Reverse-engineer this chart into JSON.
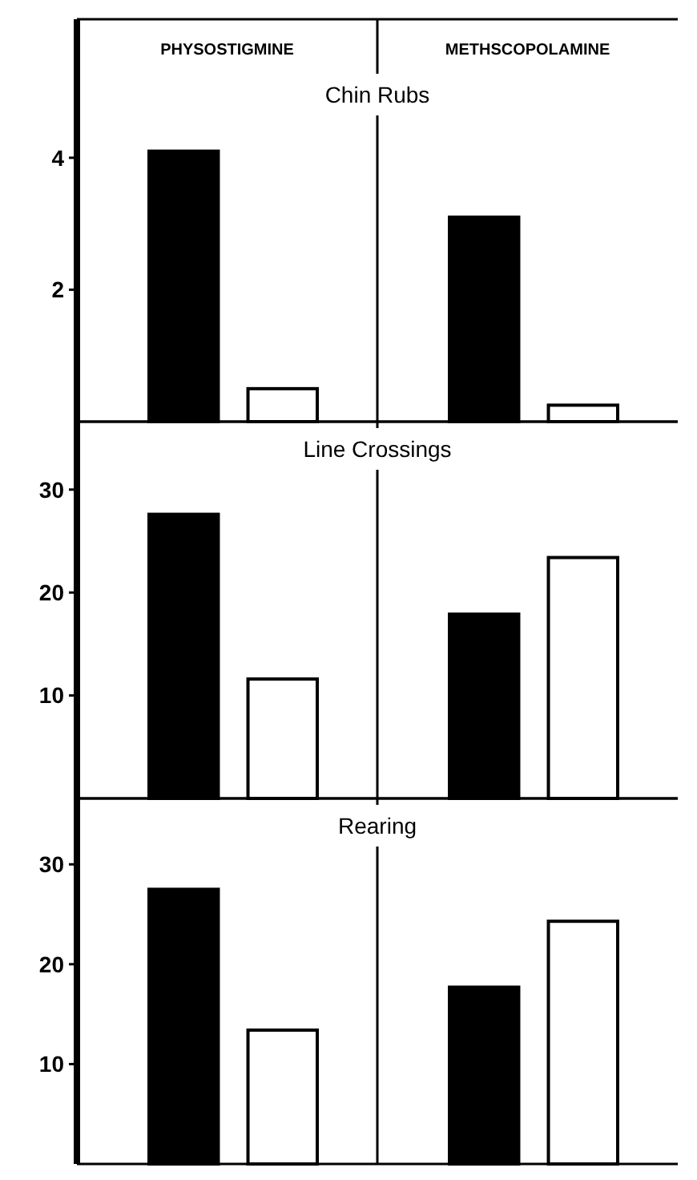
{
  "chart_data": [
    {
      "type": "bar",
      "title": "Chin Rubs",
      "categories": [
        "PHYSOSTIGMINE",
        "METHSCOPOLAMINE"
      ],
      "ylim": [
        0,
        6.1
      ],
      "yticks": [
        2,
        4
      ],
      "grid": false,
      "series": [
        {
          "color": "#000000",
          "values": [
            4.1,
            3.1
          ]
        },
        {
          "color": "#ffffff",
          "values": [
            0.5,
            0.25
          ]
        }
      ]
    },
    {
      "type": "bar",
      "title": "Line Crossings",
      "categories": [
        null,
        null
      ],
      "tick_labels": "y",
      "ylim": [
        0,
        36.6
      ],
      "yticks": [
        10,
        20,
        30
      ],
      "grid": false,
      "series": [
        {
          "color": "#000000",
          "values": [
            27.6,
            17.9
          ]
        },
        {
          "color": "#ffffff",
          "values": [
            11.6,
            23.4
          ]
        }
      ]
    },
    {
      "type": "bar",
      "title": "Rearing",
      "categories": [
        null,
        null
      ],
      "tick_labels": "y",
      "ylim": [
        0,
        36.6
      ],
      "yticks": [
        10,
        20,
        30
      ],
      "grid": false,
      "series": [
        {
          "color": "#000000",
          "values": [
            27.5,
            17.7
          ]
        },
        {
          "color": "#ffffff",
          "values": [
            13.4,
            24.3
          ]
        }
      ]
    }
  ]
}
